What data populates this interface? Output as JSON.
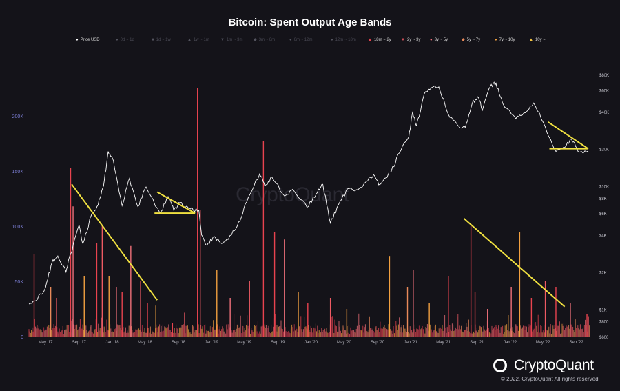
{
  "chart_data": {
    "type": "bar",
    "title": "Bitcoin: Spent Output Age Bands",
    "watermark": "CryptoQuant",
    "brand": "CryptoQuant",
    "copyright": "© 2022. CryptoQuant All rights reserved.",
    "legend": [
      {
        "label": "Price USD",
        "marker": "●",
        "color": "#ffffff",
        "active": true
      },
      {
        "label": "0d ~ 1d",
        "marker": "●",
        "color": "#555560",
        "active": false
      },
      {
        "label": "1d ~ 1w",
        "marker": "■",
        "color": "#555560",
        "active": false
      },
      {
        "label": "1w ~ 1m",
        "marker": "▲",
        "color": "#555560",
        "active": false
      },
      {
        "label": "1m ~ 3m",
        "marker": "▼",
        "color": "#555560",
        "active": false
      },
      {
        "label": "3m ~ 6m",
        "marker": "◆",
        "color": "#555560",
        "active": false
      },
      {
        "label": "6m ~ 12m",
        "marker": "●",
        "color": "#555560",
        "active": false
      },
      {
        "label": "12m ~ 18m",
        "marker": "●",
        "color": "#555560",
        "active": false
      },
      {
        "label": "18m ~ 2y",
        "marker": "▲",
        "color": "#e8434f",
        "active": true
      },
      {
        "label": "2y ~ 3y",
        "marker": "▼",
        "color": "#ee5a63",
        "active": true
      },
      {
        "label": "3y ~ 5y",
        "marker": "●",
        "color": "#f0707a",
        "active": true
      },
      {
        "label": "5y ~ 7y",
        "marker": "◆",
        "color": "#e98a5a",
        "active": true
      },
      {
        "label": "7y ~ 10y",
        "marker": "●",
        "color": "#f2a040",
        "active": true
      },
      {
        "label": "10y ~",
        "marker": "▲",
        "color": "#f5c542",
        "active": true
      }
    ],
    "x_ticks": [
      "May '17",
      "Sep '17",
      "Jan '18",
      "May '18",
      "Sep '18",
      "Jan '19",
      "May '19",
      "Sep '19",
      "Jan '20",
      "May '20",
      "Sep '20",
      "Jan '21",
      "May '21",
      "Sep '21",
      "Jan '22",
      "May '22",
      "Sep '22"
    ],
    "y_left_ticks": [
      "0",
      "50K",
      "100K",
      "150K",
      "200K"
    ],
    "y_left_lim": [
      0,
      230000
    ],
    "y_right_ticks": [
      "$600",
      "$800",
      "$1K",
      "$2K",
      "$4K",
      "$6K",
      "$8K",
      "$10K",
      "$20K",
      "$40K",
      "$60K",
      "$80K"
    ],
    "y_right_scale": "log",
    "y_right_lim": [
      600,
      80000
    ],
    "price_series": {
      "name": "Price USD",
      "color": "#ffffff",
      "points": [
        [
          "2017-03-01",
          1100
        ],
        [
          "2017-04-01",
          1200
        ],
        [
          "2017-05-01",
          1500
        ],
        [
          "2017-05-25",
          2400
        ],
        [
          "2017-06-15",
          2700
        ],
        [
          "2017-07-15",
          2000
        ],
        [
          "2017-08-01",
          2800
        ],
        [
          "2017-09-01",
          4800
        ],
        [
          "2017-09-15",
          3400
        ],
        [
          "2017-10-15",
          5700
        ],
        [
          "2017-11-10",
          7000
        ],
        [
          "2017-11-30",
          10000
        ],
        [
          "2017-12-17",
          19000
        ],
        [
          "2018-01-05",
          16000
        ],
        [
          "2018-02-06",
          6900
        ],
        [
          "2018-03-05",
          11500
        ],
        [
          "2018-04-05",
          6800
        ],
        [
          "2018-05-05",
          9800
        ],
        [
          "2018-06-25",
          6000
        ],
        [
          "2018-07-25",
          8200
        ],
        [
          "2018-08-15",
          6300
        ],
        [
          "2018-09-05",
          7300
        ],
        [
          "2018-10-15",
          6500
        ],
        [
          "2018-11-15",
          6300
        ],
        [
          "2018-11-25",
          4000
        ],
        [
          "2018-12-15",
          3300
        ],
        [
          "2019-01-10",
          3900
        ],
        [
          "2019-02-07",
          3400
        ],
        [
          "2019-03-15",
          4000
        ],
        [
          "2019-04-15",
          5200
        ],
        [
          "2019-05-15",
          8000
        ],
        [
          "2019-06-26",
          12500
        ],
        [
          "2019-07-15",
          10000
        ],
        [
          "2019-08-10",
          11800
        ],
        [
          "2019-09-25",
          8300
        ],
        [
          "2019-10-26",
          9400
        ],
        [
          "2019-12-17",
          6700
        ],
        [
          "2020-01-20",
          8600
        ],
        [
          "2020-02-13",
          10300
        ],
        [
          "2020-03-12",
          5000
        ],
        [
          "2020-04-10",
          7000
        ],
        [
          "2020-05-15",
          9500
        ],
        [
          "2020-06-15",
          9300
        ],
        [
          "2020-07-27",
          11000
        ],
        [
          "2020-08-17",
          12300
        ],
        [
          "2020-09-05",
          10200
        ],
        [
          "2020-10-21",
          13000
        ],
        [
          "2020-11-20",
          18500
        ],
        [
          "2020-12-25",
          25000
        ],
        [
          "2021-01-08",
          40000
        ],
        [
          "2021-01-22",
          31000
        ],
        [
          "2021-02-20",
          56000
        ],
        [
          "2021-03-14",
          61000
        ],
        [
          "2021-04-14",
          63500
        ],
        [
          "2021-05-19",
          38000
        ],
        [
          "2021-06-22",
          31000
        ],
        [
          "2021-07-20",
          29800
        ],
        [
          "2021-08-15",
          47000
        ],
        [
          "2021-09-07",
          52000
        ],
        [
          "2021-09-21",
          41000
        ],
        [
          "2021-10-20",
          64000
        ],
        [
          "2021-11-10",
          68000
        ],
        [
          "2021-12-04",
          47000
        ],
        [
          "2022-01-22",
          35000
        ],
        [
          "2022-02-20",
          39000
        ],
        [
          "2022-03-28",
          47000
        ],
        [
          "2022-05-10",
          30000
        ],
        [
          "2022-06-18",
          19000
        ],
        [
          "2022-07-15",
          20500
        ],
        [
          "2022-08-14",
          24000
        ],
        [
          "2022-09-07",
          19000
        ],
        [
          "2022-10-15",
          19200
        ]
      ]
    },
    "bars_note": "Spent output volume spikes (BTC) by date",
    "spikes": [
      [
        "2017-03-20",
        75000,
        "#e8434f"
      ],
      [
        "2017-05-20",
        45000,
        "#e98a5a"
      ],
      [
        "2017-06-10",
        35000,
        "#ee5a63"
      ],
      [
        "2017-08-01",
        153000,
        "#e8434f"
      ],
      [
        "2017-08-10",
        118000,
        "#f0707a"
      ],
      [
        "2017-09-20",
        55000,
        "#f2a040"
      ],
      [
        "2017-11-05",
        85000,
        "#e8434f"
      ],
      [
        "2017-11-25",
        100000,
        "#ee5a63"
      ],
      [
        "2017-12-20",
        55000,
        "#f2a040"
      ],
      [
        "2018-01-16",
        45000,
        "#f0707a"
      ],
      [
        "2018-02-06",
        40000,
        "#e8434f"
      ],
      [
        "2018-03-10",
        82000,
        "#f0707a"
      ],
      [
        "2018-04-15",
        50000,
        "#ee5a63"
      ],
      [
        "2018-05-10",
        30000,
        "#e8434f"
      ],
      [
        "2018-06-10",
        28000,
        "#f2a040"
      ],
      [
        "2018-08-10",
        12000,
        "#e8434f"
      ],
      [
        "2018-11-10",
        225000,
        "#e8434f"
      ],
      [
        "2018-11-20",
        115000,
        "#ee5a63"
      ],
      [
        "2019-01-20",
        60000,
        "#f2a040"
      ],
      [
        "2019-03-10",
        35000,
        "#f0707a"
      ],
      [
        "2019-05-20",
        50000,
        "#ee5a63"
      ],
      [
        "2019-07-10",
        177000,
        "#e8434f"
      ],
      [
        "2019-08-20",
        95000,
        "#e8434f"
      ],
      [
        "2019-09-25",
        88000,
        "#f0707a"
      ],
      [
        "2019-11-15",
        40000,
        "#f2a040"
      ],
      [
        "2019-12-20",
        30000,
        "#e8434f"
      ],
      [
        "2020-03-12",
        35000,
        "#ee5a63"
      ],
      [
        "2020-05-11",
        25000,
        "#f2a040"
      ],
      [
        "2020-10-15",
        73000,
        "#f2a040"
      ],
      [
        "2020-12-20",
        45000,
        "#e98a5a"
      ],
      [
        "2021-01-10",
        60000,
        "#f0707a"
      ],
      [
        "2021-03-10",
        30000,
        "#f2a040"
      ],
      [
        "2021-05-19",
        55000,
        "#e8434f"
      ],
      [
        "2021-08-10",
        100000,
        "#e8434f"
      ],
      [
        "2021-08-25",
        40000,
        "#e8434f"
      ],
      [
        "2021-10-10",
        25000,
        "#f0707a"
      ],
      [
        "2022-01-05",
        45000,
        "#f0707a"
      ],
      [
        "2022-02-05",
        95000,
        "#f2a040"
      ],
      [
        "2022-03-20",
        35000,
        "#e8434f"
      ],
      [
        "2022-05-10",
        50000,
        "#ee5a63"
      ],
      [
        "2022-06-18",
        45000,
        "#e8434f"
      ],
      [
        "2022-08-10",
        30000,
        "#f0707a"
      ],
      [
        "2022-10-10",
        20000,
        "#e8434f"
      ]
    ],
    "annotations": [
      {
        "type": "line",
        "color": "#f0e040",
        "from": [
          "2017-08-05",
          138000
        ],
        "to": [
          "2018-06-15",
          33000
        ]
      },
      {
        "type": "triangle",
        "color": "#f0e040",
        "apex": [
          "2018-06-15",
          8900
        ],
        "base_left": [
          "2018-06-05",
          6000
        ],
        "base_right": [
          "2018-11-01",
          6000
        ]
      },
      {
        "type": "line",
        "color": "#f0e040",
        "from": [
          "2021-07-15",
          107000
        ],
        "to": [
          "2022-07-20",
          27000
        ]
      },
      {
        "type": "triangle",
        "color": "#f0e040",
        "apex": [
          "2022-05-20",
          33000
        ],
        "base_left": [
          "2022-05-25",
          20000
        ],
        "base_right": [
          "2022-10-15",
          20000
        ]
      }
    ],
    "grid": false,
    "legend_position": "top"
  }
}
